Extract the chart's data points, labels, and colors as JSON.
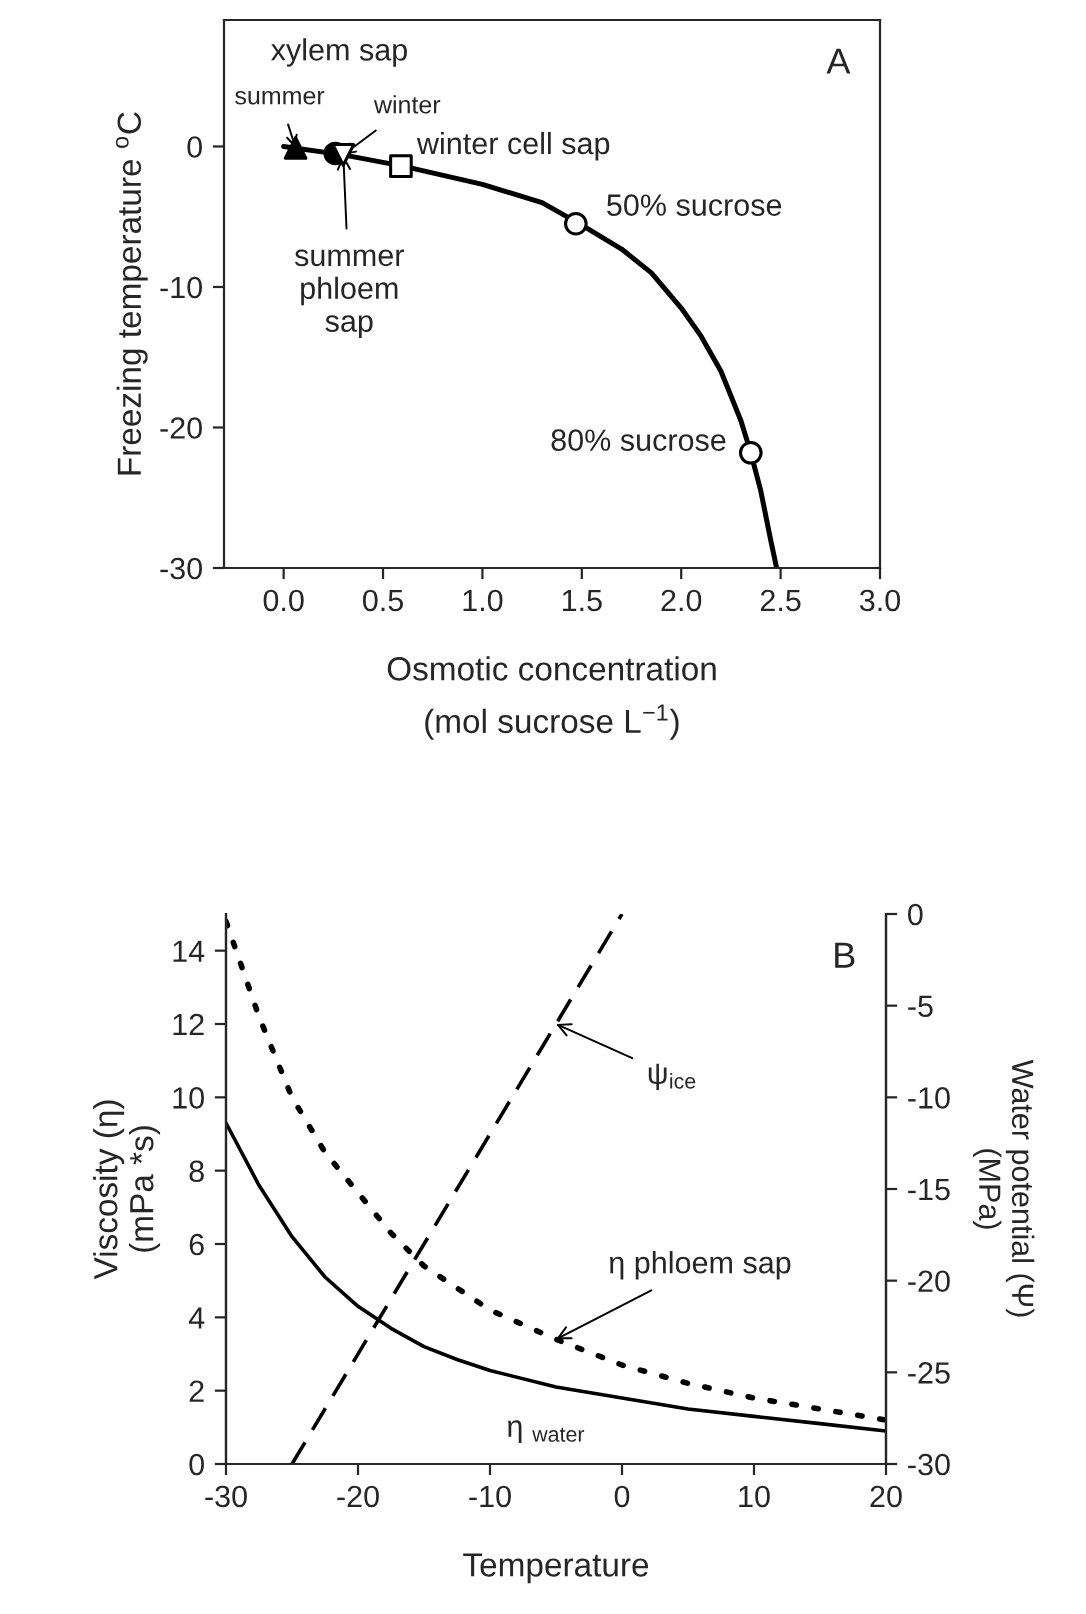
{
  "chart_data": [
    {
      "type": "line",
      "xlabel": "Osmotic concentration\n(mol sucrose L$^{−1}$)",
      "ylabel": "Freezing temperature $^{o}$C",
      "xlim": [
        -0.3,
        3.0
      ],
      "xticks": [
        {
          "value": 0,
          "label": "0.0"
        },
        0.5,
        {
          "value": 1,
          "label": "1.0"
        },
        1.5,
        {
          "value": 2,
          "label": "2.0"
        },
        2.5,
        {
          "value": 3,
          "label": "3.0"
        }
      ],
      "ylim": [
        -30,
        9
      ],
      "yticks": [
        -30,
        -20,
        -10,
        0
      ],
      "grid": false,
      "legend": false,
      "series": [
        {
          "color": "#000000",
          "line_style": "solid",
          "marker": "none",
          "x": [
            0,
            0.3,
            0.6,
            1.0,
            1.3,
            1.5,
            1.7,
            1.85,
            2.0,
            2.1,
            2.2,
            2.3,
            2.35,
            2.4,
            2.45,
            2.48
          ],
          "values": [
            0,
            -0.6,
            -1.4,
            -2.7,
            -4.0,
            -5.6,
            -7.3,
            -9.0,
            -11.5,
            -13.5,
            -16.0,
            -19.5,
            -21.8,
            -24.5,
            -28.0,
            -30
          ]
        },
        {
          "type": "scatter",
          "color": "#000000",
          "marker": "triangle",
          "x": [
            0.06
          ],
          "values": [
            -0.1
          ]
        },
        {
          "type": "scatter",
          "color": "#000000",
          "marker": "circle",
          "x": [
            0.26
          ],
          "values": [
            -0.5
          ]
        },
        {
          "type": "scatter",
          "color": "#ffffff",
          "marker": "triangle_down",
          "x": [
            0.3
          ],
          "values": [
            -0.6
          ]
        },
        {
          "type": "scatter",
          "color": "#ffffff",
          "marker": "square",
          "x": [
            0.59
          ],
          "values": [
            -1.4
          ]
        },
        {
          "type": "scatter",
          "color": "#ffffff",
          "marker": "circle",
          "x": [
            1.47,
            2.35
          ],
          "values": [
            -5.5,
            -21.8
          ]
        }
      ],
      "annotations": [
        "A",
        {
          "text": "xylem sap",
          "x": 0.16,
          "y": 0
        },
        {
          "text": "summer",
          "x": 0.06,
          "y": -0.1
        },
        {
          "text": "winter",
          "x": 0.3,
          "y": -0.6
        },
        {
          "text": "summer\nphloem\nsap",
          "x": 0.3,
          "y": -0.6
        },
        {
          "text": "winter cell sap",
          "x": 0.59,
          "y": -1.4
        },
        {
          "text": "50% sucrose",
          "x": 1.47,
          "y": -5.5
        },
        {
          "text": "80% sucrose",
          "x": 2.35,
          "y": -21.8
        }
      ]
    },
    {
      "type": "line",
      "xlabel": "Temperature",
      "ylabel": "Viscosity (η)\n(mPa *s)",
      "y2label": "Water potential (Ψ)\n(MPa)",
      "xlim": [
        -30,
        20
      ],
      "xticks": [
        -30,
        -20,
        -10,
        0,
        10,
        20
      ],
      "ylim": [
        0,
        15
      ],
      "yticks": [
        0,
        2,
        4,
        6,
        8,
        10,
        12,
        14
      ],
      "y2lim": [
        -30,
        0
      ],
      "y2ticks": [
        -30,
        -25,
        -20,
        -15,
        -10,
        -5,
        0
      ],
      "grid": false,
      "legend": false,
      "series": [
        {
          "color": "#000000",
          "line_style": "solid",
          "marker": "none",
          "x": [
            -30,
            -27.5,
            -25,
            -22.5,
            -20,
            -17.5,
            -15,
            -12.5,
            -10,
            -5,
            0,
            5,
            10,
            15,
            20
          ],
          "values": [
            9.3,
            7.6,
            6.2,
            5.1,
            4.3,
            3.7,
            3.2,
            2.85,
            2.55,
            2.1,
            1.8,
            1.5,
            1.3,
            1.1,
            0.9
          ]
        },
        {
          "color": "#000000",
          "line_style": "dotted",
          "marker": "none",
          "x": [
            -30,
            -27.5,
            -25,
            -22.5,
            -20,
            -17.5,
            -15,
            -12.5,
            -10,
            -5,
            0,
            5,
            10,
            15,
            20
          ],
          "values": [
            14.8,
            12.2,
            10.0,
            8.5,
            7.4,
            6.3,
            5.4,
            4.8,
            4.2,
            3.4,
            2.7,
            2.2,
            1.8,
            1.5,
            1.2
          ]
        },
        {
          "axis": "y2",
          "color": "#000000",
          "line_style": "dashed",
          "marker": "none",
          "x": [
            -25,
            0
          ],
          "values": [
            -30,
            0
          ]
        }
      ],
      "annotations": [
        "B",
        {
          "text": "ψ$_{ice}$",
          "x": -5,
          "y": 12
        },
        {
          "text": "η phloem sap",
          "x": -5,
          "y": 3.4
        },
        {
          "text": "η $_{water}$",
          "x": -5,
          "y": 2.1
        }
      ]
    }
  ]
}
